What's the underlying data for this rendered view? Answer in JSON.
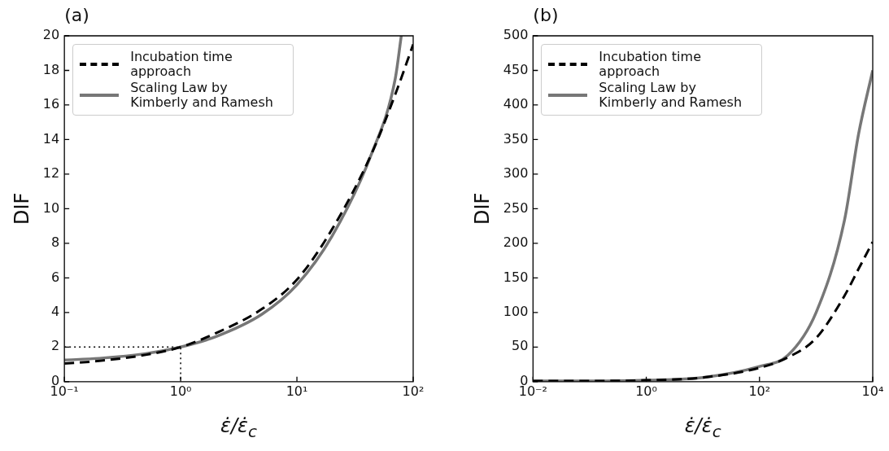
{
  "chart_data": [
    {
      "type": "line",
      "title": "(a)",
      "xlabel": "ε̇/ε̇$_{c}$",
      "ylabel": "DIF",
      "log": "x",
      "xlim": [
        0.1,
        100
      ],
      "ylim": [
        0,
        20
      ],
      "xticks": [
        {
          "value": 0.1,
          "label": "10⁻¹"
        },
        {
          "value": 1,
          "label": "10⁰"
        },
        {
          "value": 10,
          "label": "10¹"
        },
        {
          "value": 100,
          "label": "10²"
        }
      ],
      "yticks": [
        0,
        2,
        4,
        6,
        8,
        10,
        12,
        14,
        16,
        18,
        20
      ],
      "grid": false,
      "legend": "top left",
      "marker": "none",
      "series": [
        {
          "name": "Incubation time approach",
          "color": "#000000",
          "line_style": "dashed",
          "x": [
            0.1,
            0.2,
            0.5,
            1,
            2,
            5,
            10,
            20,
            44,
            70,
            100
          ],
          "values": [
            1.05,
            1.2,
            1.55,
            2.0,
            2.8,
            4.2,
            5.9,
            8.8,
            13.2,
            16.6,
            19.5
          ]
        },
        {
          "name": "Scaling Law by Kimberly and Ramesh",
          "color": "#777777",
          "line_style": "solid",
          "x": [
            0.1,
            0.2,
            0.5,
            1,
            2,
            5,
            10,
            20,
            44,
            70,
            79
          ],
          "values": [
            1.25,
            1.35,
            1.62,
            2.0,
            2.6,
            3.9,
            5.6,
            8.4,
            13.2,
            17.5,
            20
          ]
        },
        {
          "color": "#000000",
          "line_style": "dotted",
          "x": [
            0.1,
            1,
            1
          ],
          "values": [
            2,
            2,
            0
          ]
        }
      ]
    },
    {
      "type": "line",
      "title": "(b)",
      "xlabel": "ε̇/ε̇$_{c}$",
      "ylabel": "DIF",
      "log": "x",
      "xlim": [
        0.01,
        10000
      ],
      "ylim": [
        0,
        500
      ],
      "xticks": [
        {
          "value": 0.01,
          "label": "10⁻²"
        },
        {
          "value": 1,
          "label": "10⁰"
        },
        {
          "value": 100,
          "label": "10²"
        },
        {
          "value": 10000,
          "label": "10⁴"
        }
      ],
      "yticks": [
        0,
        50,
        100,
        150,
        200,
        250,
        300,
        350,
        400,
        450,
        500
      ],
      "grid": false,
      "legend": "top left",
      "marker": "none",
      "series": [
        {
          "name": "Incubation time approach",
          "color": "#000000",
          "line_style": "dashed",
          "x": [
            0.01,
            0.1,
            1,
            10,
            100,
            316,
            1000,
            3162,
            5623,
            10000
          ],
          "values": [
            1,
            1,
            2,
            6,
            20,
            35,
            63,
            124,
            163,
            202
          ]
        },
        {
          "name": "Scaling Law by Kimberly and Ramesh",
          "color": "#777777",
          "line_style": "solid",
          "x": [
            0.01,
            0.1,
            1,
            10,
            100,
            316,
            1000,
            3162,
            5623,
            10000
          ],
          "values": [
            1,
            1,
            2,
            6,
            22,
            38,
            100,
            233,
            358,
            450
          ]
        }
      ]
    }
  ]
}
